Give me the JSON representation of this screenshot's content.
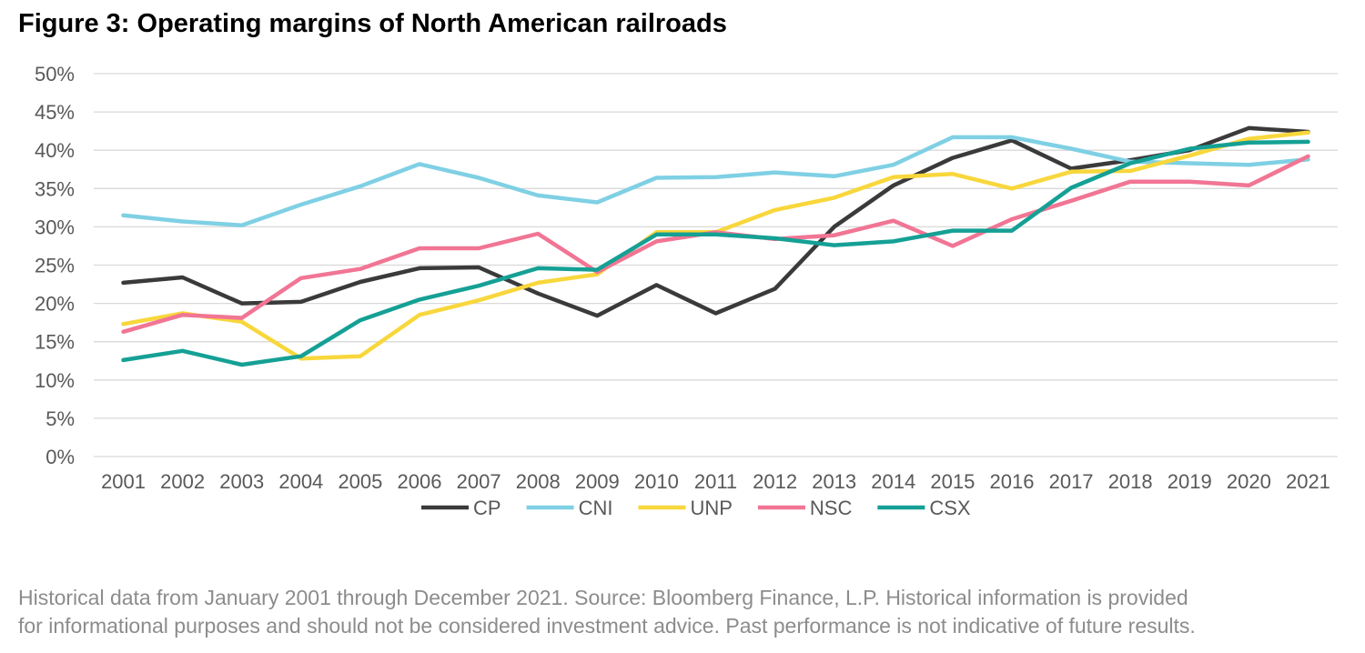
{
  "title": "Figure 3: Operating margins of North American railroads",
  "footnote": {
    "line1": "Historical data from January 2001 through December 2021. Source: Bloomberg Finance, L.P. Historical information is provided",
    "line2": "for informational purposes and should not be considered investment advice. Past performance is not indicative of future results."
  },
  "chart_data": {
    "type": "line",
    "title": "Figure 3: Operating margins of North American railroads",
    "xlabel": "",
    "ylabel": "",
    "ylim": [
      0,
      50
    ],
    "y_tick_step": 5,
    "y_tick_format": "percent",
    "grid": true,
    "legend": "bottom",
    "x": [
      "2001",
      "2002",
      "2003",
      "2004",
      "2005",
      "2006",
      "2007",
      "2008",
      "2009",
      "2010",
      "2011",
      "2012",
      "2013",
      "2014",
      "2015",
      "2016",
      "2017",
      "2018",
      "2019",
      "2020",
      "2021"
    ],
    "series": [
      {
        "name": "CP",
        "color": "#3a3a3a",
        "values": [
          22.7,
          23.4,
          20.0,
          20.2,
          22.8,
          24.6,
          24.7,
          21.3,
          18.4,
          22.4,
          18.7,
          21.9,
          30.0,
          35.4,
          39.0,
          41.3,
          37.6,
          38.7,
          40.0,
          42.9,
          42.4
        ]
      },
      {
        "name": "CNI",
        "color": "#7fd0e4",
        "values": [
          31.5,
          30.7,
          30.2,
          32.9,
          35.3,
          38.2,
          36.4,
          34.1,
          33.2,
          36.4,
          36.5,
          37.1,
          36.6,
          38.1,
          41.7,
          41.7,
          40.2,
          38.5,
          38.3,
          38.1,
          38.8
        ]
      },
      {
        "name": "UNP",
        "color": "#f8d73c",
        "values": [
          17.3,
          18.7,
          17.6,
          12.8,
          13.1,
          18.5,
          20.4,
          22.7,
          23.8,
          29.3,
          29.3,
          32.2,
          33.8,
          36.5,
          36.9,
          35.0,
          37.2,
          37.3,
          39.3,
          41.5,
          42.3
        ]
      },
      {
        "name": "NSC",
        "color": "#f17594",
        "values": [
          16.3,
          18.5,
          18.1,
          23.3,
          24.5,
          27.2,
          27.2,
          29.1,
          24.1,
          28.1,
          29.3,
          28.4,
          28.9,
          30.8,
          27.5,
          31.0,
          33.4,
          35.9,
          35.9,
          35.4,
          39.2
        ]
      },
      {
        "name": "CSX",
        "color": "#15a095",
        "values": [
          12.6,
          13.8,
          12.0,
          13.1,
          17.8,
          20.5,
          22.3,
          24.6,
          24.4,
          29.0,
          29.0,
          28.5,
          27.6,
          28.1,
          29.5,
          29.5,
          35.1,
          38.3,
          40.2,
          41.0,
          41.1
        ]
      }
    ]
  }
}
